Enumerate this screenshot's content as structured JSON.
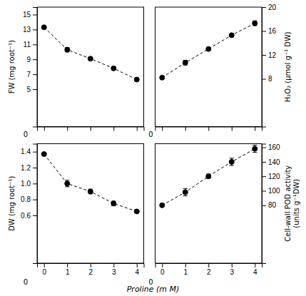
{
  "chart_data": [
    {
      "type": "line",
      "ylabel": "FW (mg root⁻¹)",
      "x": [
        0,
        1,
        2,
        3,
        4
      ],
      "xlim": [
        -0.3,
        4.3
      ],
      "xticks": [
        0,
        1,
        2,
        3,
        4
      ],
      "ylim": [
        0,
        16
      ],
      "yticks": [
        5,
        7,
        9,
        11,
        13,
        15
      ],
      "series": [
        {
          "values": [
            13.3,
            10.3,
            9.1,
            7.8,
            6.3
          ],
          "errors": [
            0.15,
            0.3,
            0.15,
            0.15,
            0.15
          ],
          "color": "black",
          "marker": "circle",
          "line_style": "dashed"
        }
      ],
      "tick_labels": "y",
      "annotations": [
        "0"
      ]
    },
    {
      "type": "line",
      "ylabel": "H₂O₂  (μmol g⁻¹ DW)",
      "x": [
        0,
        1,
        2,
        3,
        4
      ],
      "xlim": [
        -0.3,
        4.3
      ],
      "xticks": [
        0,
        1,
        2,
        3,
        4
      ],
      "y2lim": [
        0,
        20
      ],
      "y2ticks": [
        8,
        12,
        16,
        20
      ],
      "series": [
        {
          "values": [
            8.2,
            10.7,
            13.0,
            15.3,
            17.3
          ],
          "errors": [
            0.15,
            0.4,
            0.15,
            0.25,
            0.4
          ],
          "color": "black",
          "marker": "circle",
          "line_style": "dashed",
          "axis": "y2"
        }
      ],
      "tick_labels": "y",
      "annotations": [
        "0"
      ]
    },
    {
      "type": "line",
      "ylabel": "DW (mg root⁻¹)",
      "xlabel": "Proline  (m M)",
      "x": [
        0,
        1,
        2,
        3,
        4
      ],
      "xlim": [
        -0.3,
        4.3
      ],
      "xticks": [
        0,
        1,
        2,
        3,
        4
      ],
      "ylim": [
        0,
        1.5
      ],
      "yticks": [
        0.6,
        0.8,
        {
          "value": 1.0,
          "label": "1.0"
        },
        1.2,
        1.4
      ],
      "series": [
        {
          "values": [
            1.37,
            1.0,
            0.9,
            0.75,
            0.65
          ],
          "errors": [
            0.02,
            0.04,
            0.03,
            0.03,
            0.02
          ],
          "color": "black",
          "marker": "circle",
          "line_style": "dashed"
        }
      ],
      "annotations": [
        "0"
      ]
    },
    {
      "type": "line",
      "ylabel": "Cell-wall POD activity\n(units g⁻¹DW)",
      "x": [
        0,
        1,
        2,
        3,
        4
      ],
      "xlim": [
        -0.3,
        4.3
      ],
      "xticks": [
        0,
        1,
        2,
        3,
        4
      ],
      "y2lim": [
        0,
        165
      ],
      "y2ticks": [
        80,
        100,
        120,
        140,
        160
      ],
      "series": [
        {
          "values": [
            80,
            98,
            120,
            140,
            158
          ],
          "errors": [
            2,
            5,
            3,
            5,
            5
          ],
          "color": "black",
          "marker": "circle",
          "line_style": "dashed",
          "axis": "y2"
        }
      ],
      "annotations": [
        "0"
      ]
    }
  ]
}
